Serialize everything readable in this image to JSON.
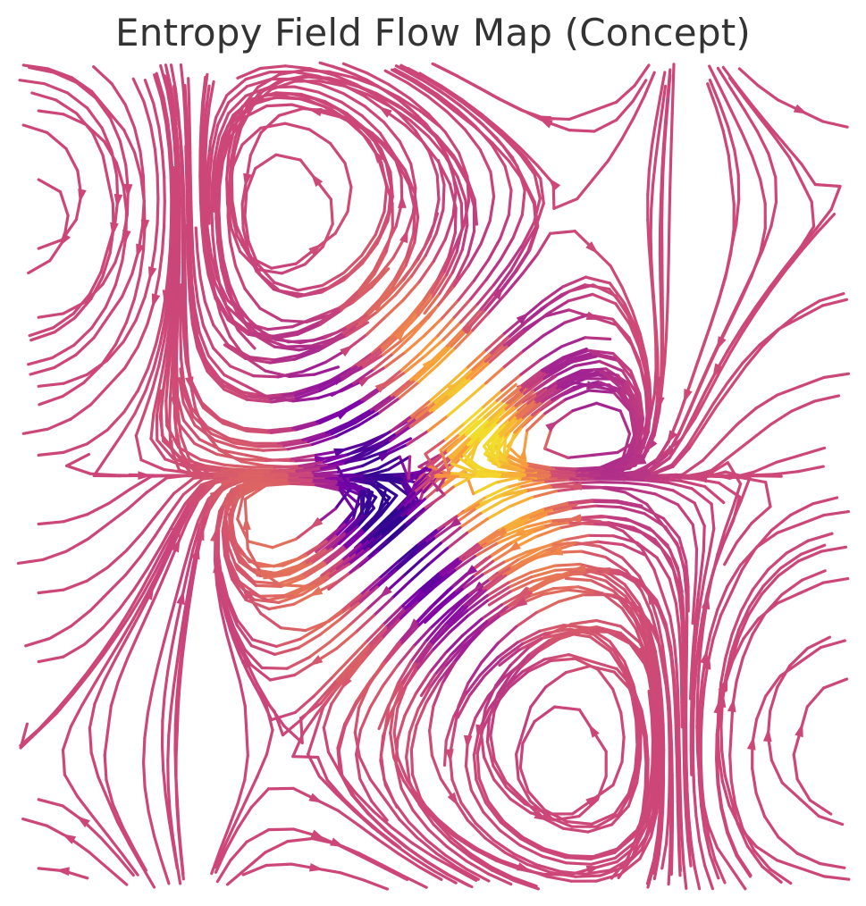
{
  "chart_data": {
    "type": "streamplot",
    "title": "Entropy Field Flow Map (Concept)",
    "xlabel": "",
    "ylabel": "",
    "axes_visible": false,
    "grid": false,
    "xlim": [
      -3,
      3
    ],
    "ylim": [
      -3,
      3
    ],
    "colormap": "plasma",
    "color_encoding": "flow speed (yellow = fastest, purple = slowest)",
    "field": {
      "description": "saddle-like divergent/convergent flow with strong speed variation near the center",
      "color_min": "#0d0887",
      "color_mid": "#cc4778",
      "color_max": "#f0f921"
    }
  }
}
